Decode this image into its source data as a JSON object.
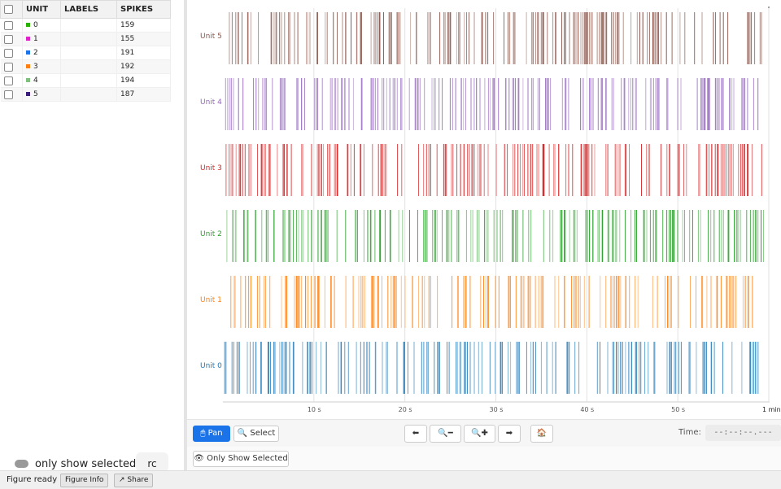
{
  "table": {
    "headers": [
      "UNIT",
      "LABELS",
      "SPIKES"
    ],
    "rows": [
      {
        "unit": "0",
        "labels": "",
        "spikes": "159",
        "color": "#2ab000"
      },
      {
        "unit": "1",
        "labels": "",
        "spikes": "155",
        "color": "#e020c8"
      },
      {
        "unit": "2",
        "labels": "",
        "spikes": "191",
        "color": "#1a73e8"
      },
      {
        "unit": "3",
        "labels": "",
        "spikes": "192",
        "color": "#ff7f0e"
      },
      {
        "unit": "4",
        "labels": "",
        "spikes": "194",
        "color": "#7fc07f"
      },
      {
        "unit": "5",
        "labels": "",
        "spikes": "187",
        "color": "#3a1c7a"
      }
    ]
  },
  "left_footer": {
    "toggle_label": "only show selected",
    "rc_text": "rc"
  },
  "raster": {
    "units": [
      {
        "label": "Unit 5",
        "color": "#8c564b"
      },
      {
        "label": "Unit 4",
        "color": "#9467bd"
      },
      {
        "label": "Unit 3",
        "color": "#d62728"
      },
      {
        "label": "Unit 2",
        "color": "#2ca02c"
      },
      {
        "label": "Unit 1",
        "color": "#ff7f0e"
      },
      {
        "label": "Unit 0",
        "color": "#1f77b4"
      }
    ],
    "x_ticks": [
      {
        "value": 10,
        "label": "10 s"
      },
      {
        "value": 20,
        "label": "20 s"
      },
      {
        "value": 30,
        "label": "30 s"
      },
      {
        "value": 40,
        "label": "40 s"
      },
      {
        "value": 50,
        "label": "50 s"
      },
      {
        "value": 60,
        "label": "1 min"
      }
    ],
    "x_range": [
      0,
      60
    ]
  },
  "toolbar": {
    "pan_label": "Pan",
    "select_label": "Select",
    "back_icon": "left-arrow-icon",
    "zoom_out_icon": "zoom-out-icon",
    "zoom_in_icon": "zoom-in-icon",
    "forward_icon": "right-arrow-icon",
    "home_icon": "home-icon",
    "time_label": "Time:",
    "time_value": "--:--:--.---",
    "only_show_selected_label": "Only Show Selected"
  },
  "statusbar": {
    "status": "Figure ready",
    "figure_info_label": "Figure Info",
    "share_label": "Share"
  }
}
